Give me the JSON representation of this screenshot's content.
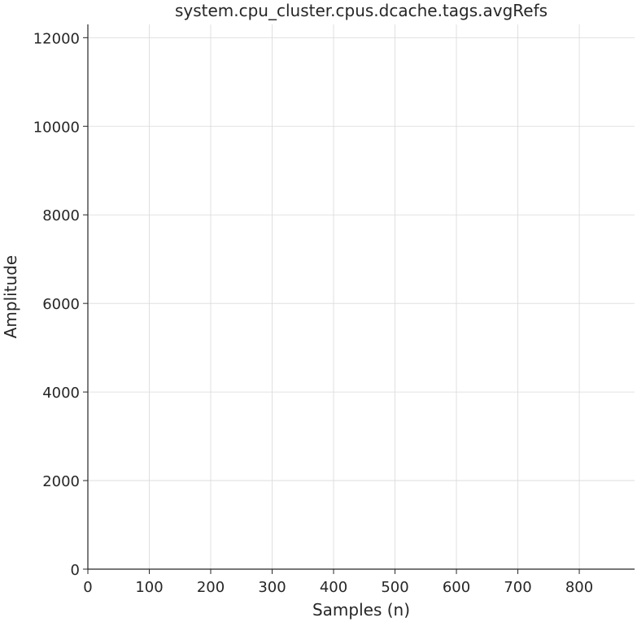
{
  "chart_data": {
    "type": "line",
    "title": "system.cpu_cluster.cpus.dcache.tags.avgRefs",
    "xlabel": "Samples (n)",
    "ylabel": "Amplitude",
    "xlim": [
      0,
      890
    ],
    "ylim": [
      0,
      12300
    ],
    "x_ticks": [
      0,
      100,
      200,
      300,
      400,
      500,
      600,
      700,
      800
    ],
    "y_ticks": [
      0,
      2000,
      4000,
      6000,
      8000,
      10000,
      12000
    ],
    "grid": true,
    "series": []
  },
  "colors": {
    "grid": "#d9d9d9",
    "axis": "#262626",
    "text": "#262626"
  }
}
